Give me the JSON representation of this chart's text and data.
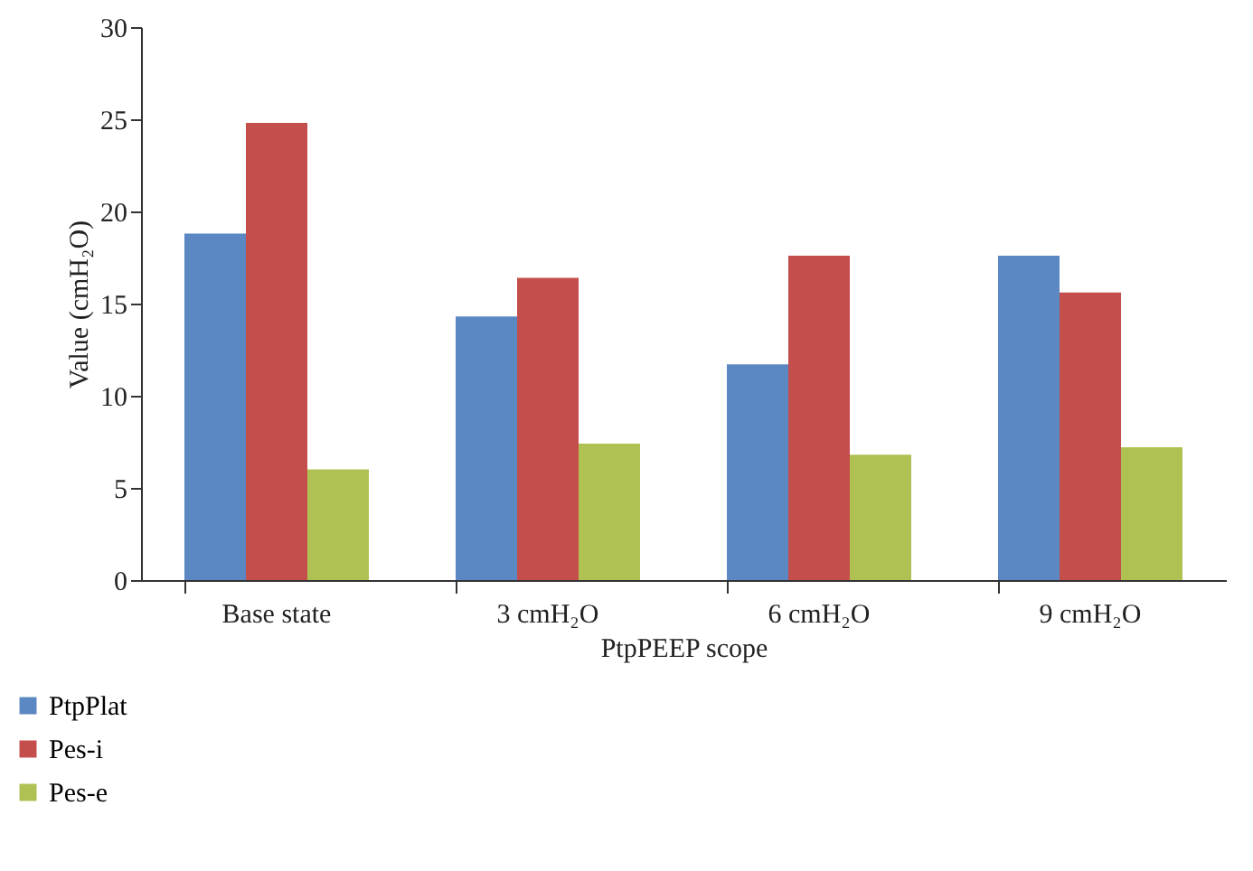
{
  "chart_data": {
    "type": "bar",
    "xlabel": "PtpPEEP scope",
    "ylabel": "Value (cmH₂O)",
    "categories": [
      "Base state",
      "3 cmH₂O",
      "6 cmH₂O",
      "9 cmH₂O"
    ],
    "series": [
      {
        "name": "PtpPlat",
        "color": "#5b87c2",
        "values": [
          18.8,
          14.3,
          11.7,
          17.6
        ]
      },
      {
        "name": "Pes-i",
        "color": "#c34e4b",
        "values": [
          24.8,
          16.4,
          17.6,
          15.6
        ]
      },
      {
        "name": "Pes-e",
        "color": "#afc152",
        "values": [
          6.0,
          7.4,
          6.8,
          7.2
        ]
      }
    ],
    "ylim": [
      0,
      30
    ],
    "yticks": [
      0,
      5,
      10,
      15,
      20,
      25,
      30
    ],
    "grid": false,
    "legend": "bottom left"
  }
}
